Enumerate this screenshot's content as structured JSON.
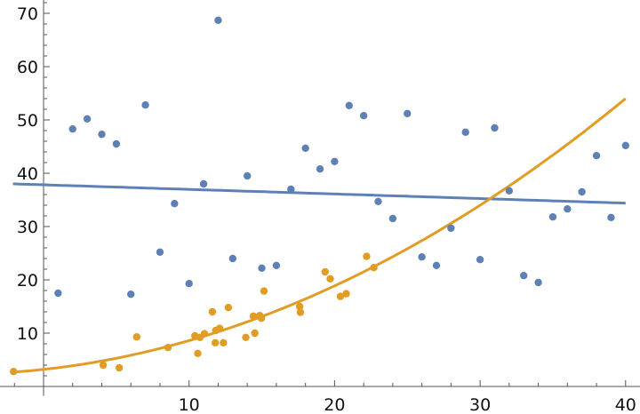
{
  "chart_data": {
    "type": "scatter",
    "title": "",
    "xlabel": "",
    "ylabel": "",
    "xlim": [
      -3,
      41
    ],
    "ylim": [
      -1.8,
      72.5
    ],
    "grid": false,
    "x_ticks": [
      10,
      20,
      30,
      40
    ],
    "y_ticks": [
      10,
      20,
      30,
      40,
      50,
      60,
      70
    ],
    "series": [
      {
        "color": "#5E81B5",
        "points": [
          [
            1,
            17.5
          ],
          [
            2,
            48.3
          ],
          [
            3,
            50.2
          ],
          [
            4,
            47.3
          ],
          [
            5,
            45.5
          ],
          [
            6,
            17.3
          ],
          [
            7,
            52.8
          ],
          [
            8,
            25.2
          ],
          [
            9,
            34.3
          ],
          [
            10,
            19.3
          ],
          [
            11,
            38
          ],
          [
            12,
            68.7
          ],
          [
            13,
            24
          ],
          [
            14,
            39.5
          ],
          [
            15,
            22.2
          ],
          [
            16,
            22.7
          ],
          [
            17,
            37
          ],
          [
            18,
            44.7
          ],
          [
            19,
            40.8
          ],
          [
            20,
            42.2
          ],
          [
            21,
            52.7
          ],
          [
            22,
            50.8
          ],
          [
            23,
            34.7
          ],
          [
            24,
            31.5
          ],
          [
            25,
            51.2
          ],
          [
            26,
            24.3
          ],
          [
            27,
            22.7
          ],
          [
            28,
            29.7
          ],
          [
            29,
            47.7
          ],
          [
            30,
            23.8
          ],
          [
            31,
            48.5
          ],
          [
            32,
            36.7
          ],
          [
            33,
            20.8
          ],
          [
            34,
            19.5
          ],
          [
            35,
            31.8
          ],
          [
            36,
            33.3
          ],
          [
            37,
            36.5
          ],
          [
            38,
            43.3
          ],
          [
            39,
            31.7
          ],
          [
            40,
            45.2
          ]
        ],
        "fit": {
          "type": "linear",
          "coefficients": [
            37.83,
            -0.086
          ],
          "x_range": [
            -2.1,
            40
          ]
        }
      },
      {
        "color": "#E19C24",
        "points": [
          [
            -2.06,
            2.8
          ],
          [
            4.1,
            4.0
          ],
          [
            5.2,
            3.5
          ],
          [
            6.4,
            9.3
          ],
          [
            8.55,
            7.3
          ],
          [
            10.4,
            9.5
          ],
          [
            10.6,
            6.2
          ],
          [
            10.75,
            9.2
          ],
          [
            11.06,
            9.9
          ],
          [
            11.6,
            14.0
          ],
          [
            11.8,
            8.2
          ],
          [
            11.83,
            10.5
          ],
          [
            12.1,
            10.9
          ],
          [
            12.36,
            8.2
          ],
          [
            12.7,
            14.8
          ],
          [
            13.9,
            9.2
          ],
          [
            14.42,
            13.2
          ],
          [
            14.52,
            10.0
          ],
          [
            14.86,
            13.3
          ],
          [
            14.97,
            12.8
          ],
          [
            15.15,
            17.9
          ],
          [
            17.6,
            15.0
          ],
          [
            17.65,
            13.9
          ],
          [
            19.35,
            21.5
          ],
          [
            19.7,
            20.2
          ],
          [
            20.4,
            16.9
          ],
          [
            20.8,
            17.4
          ],
          [
            22.2,
            24.4
          ],
          [
            22.7,
            22.3
          ]
        ],
        "fit": {
          "type": "quadratic",
          "coefficients": [
            3.2,
            0.297,
            0.02433
          ],
          "x_range": [
            -2.1,
            40
          ]
        }
      }
    ]
  }
}
